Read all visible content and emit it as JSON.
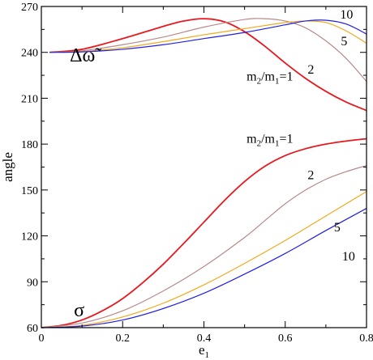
{
  "chart_data": {
    "type": "line",
    "xlabel": "e",
    "xlabel_sub": "1",
    "ylabel": "angle",
    "xlim": [
      0,
      0.8
    ],
    "ylim": [
      60,
      270
    ],
    "xticks": [
      0,
      0.2,
      0.4,
      0.6,
      0.8
    ],
    "xtick_labels": [
      "0",
      "0.2",
      "0.4",
      "0.6",
      "0.8"
    ],
    "yticks": [
      60,
      90,
      120,
      150,
      180,
      210,
      240,
      270
    ],
    "ytick_labels": [
      "60",
      "90",
      "120",
      "150",
      "180",
      "210",
      "240",
      "270"
    ],
    "grid": false,
    "colors": {
      "ratio_1": "#e8191e",
      "ratio_2": "#b88a8a",
      "ratio_5": "#f2a91d",
      "ratio_10": "#2020e0"
    },
    "series": [
      {
        "group": "delta_omega",
        "color_key": "ratio_1",
        "x": [
          0.02,
          0.1,
          0.2,
          0.3,
          0.35,
          0.4,
          0.45,
          0.5,
          0.55,
          0.6,
          0.65,
          0.7,
          0.75,
          0.8
        ],
        "y": [
          240,
          242,
          249,
          257,
          260.5,
          262,
          260,
          253.5,
          244,
          233,
          223,
          214.5,
          207.5,
          202
        ]
      },
      {
        "group": "delta_omega",
        "color_key": "ratio_2",
        "x": [
          0.02,
          0.1,
          0.2,
          0.3,
          0.4,
          0.5,
          0.55,
          0.6,
          0.65,
          0.7,
          0.75,
          0.8
        ],
        "y": [
          240,
          241,
          245,
          250,
          256.5,
          261.5,
          262,
          260.5,
          256,
          247.5,
          236,
          221
        ]
      },
      {
        "group": "delta_omega",
        "color_key": "ratio_5",
        "x": [
          0.02,
          0.1,
          0.2,
          0.3,
          0.4,
          0.5,
          0.6,
          0.65,
          0.7,
          0.75,
          0.8
        ],
        "y": [
          240,
          240.5,
          243,
          247,
          251.5,
          255.5,
          259.5,
          260.5,
          259.5,
          254,
          246
        ]
      },
      {
        "group": "delta_omega",
        "color_key": "ratio_10",
        "x": [
          0.02,
          0.1,
          0.2,
          0.3,
          0.4,
          0.5,
          0.6,
          0.65,
          0.7,
          0.75,
          0.8
        ],
        "y": [
          240,
          240.3,
          242,
          245,
          249,
          253,
          258,
          260.5,
          261,
          258.5,
          252
        ]
      },
      {
        "group": "sigma",
        "color_key": "ratio_1",
        "x": [
          0,
          0.05,
          0.1,
          0.15,
          0.2,
          0.25,
          0.3,
          0.35,
          0.4,
          0.45,
          0.5,
          0.55,
          0.6,
          0.65,
          0.7,
          0.75,
          0.8
        ],
        "y": [
          60,
          61.5,
          65,
          71,
          79,
          89.5,
          101.5,
          115,
          129,
          143,
          155.5,
          165.5,
          172.5,
          177,
          180,
          182,
          183.5
        ]
      },
      {
        "group": "sigma",
        "color_key": "ratio_2",
        "x": [
          0,
          0.1,
          0.2,
          0.3,
          0.4,
          0.5,
          0.55,
          0.6,
          0.65,
          0.7,
          0.75,
          0.8
        ],
        "y": [
          60,
          63,
          71,
          84,
          100,
          119,
          130,
          141,
          150,
          157,
          162,
          166
        ]
      },
      {
        "group": "sigma",
        "color_key": "ratio_5",
        "x": [
          0,
          0.1,
          0.2,
          0.3,
          0.4,
          0.5,
          0.6,
          0.7,
          0.8
        ],
        "y": [
          60,
          61.5,
          67,
          76,
          88,
          102,
          117,
          133,
          149
        ]
      },
      {
        "group": "sigma",
        "color_key": "ratio_10",
        "x": [
          0,
          0.1,
          0.2,
          0.3,
          0.4,
          0.5,
          0.6,
          0.7,
          0.8
        ],
        "y": [
          60,
          61,
          65,
          72.5,
          82.5,
          95,
          108.5,
          123.5,
          138
        ]
      }
    ],
    "annotations": [
      {
        "text": "Δω̃",
        "x": 0.07,
        "y": 234,
        "class": "big-ann"
      },
      {
        "text": "σ",
        "x": 0.08,
        "y": 67.5,
        "class": "big-ann"
      },
      {
        "text": "m",
        "x": 0.505,
        "y": 221.5,
        "parts": [
          "m",
          "2",
          "/m",
          "1",
          "=1"
        ],
        "class": "ann"
      },
      {
        "text": "m",
        "x": 0.505,
        "y": 181,
        "parts": [
          "m",
          "2",
          "/m",
          "1",
          "=1"
        ],
        "class": "ann"
      },
      {
        "text": "10",
        "x": 0.735,
        "y": 262,
        "class": "ann"
      },
      {
        "text": "5",
        "x": 0.737,
        "y": 244.5,
        "class": "ann"
      },
      {
        "text": "2",
        "x": 0.655,
        "y": 226,
        "class": "ann"
      },
      {
        "text": "2",
        "x": 0.655,
        "y": 157,
        "class": "ann"
      },
      {
        "text": "5",
        "x": 0.72,
        "y": 123,
        "class": "ann"
      },
      {
        "text": "10",
        "x": 0.74,
        "y": 104,
        "class": "ann"
      }
    ]
  }
}
